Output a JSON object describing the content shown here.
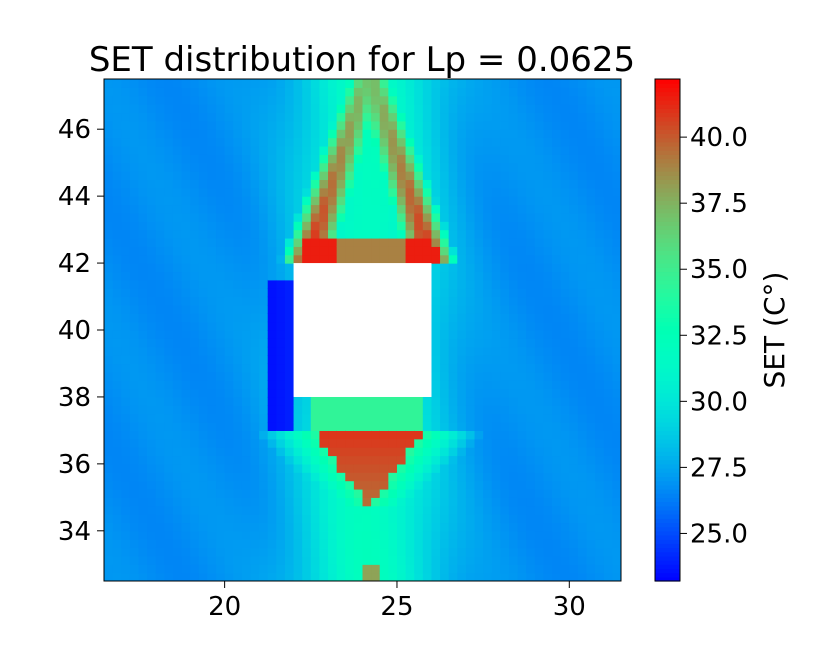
{
  "chart_data": {
    "type": "heatmap",
    "title": "SET distribution for Lp = 0.0625",
    "xlabel": "",
    "ylabel": "",
    "xlim": [
      16.5,
      31.5
    ],
    "ylim": [
      32.5,
      47.5
    ],
    "x_ticks": [
      20,
      25,
      30
    ],
    "x_tick_labels": [
      "20",
      "25",
      "30"
    ],
    "y_ticks": [
      34,
      36,
      38,
      40,
      42,
      44,
      46
    ],
    "y_tick_labels": [
      "34",
      "36",
      "38",
      "40",
      "42",
      "44",
      "46"
    ],
    "grid": false,
    "colormap": "rainbow",
    "value_range": [
      23.2,
      42.2
    ],
    "colorbar": {
      "label": "SET (C°)",
      "ticks": [
        25.0,
        27.5,
        30.0,
        32.5,
        35.0,
        37.5,
        40.0
      ],
      "tick_labels": [
        "25.0",
        "27.5",
        "30.0",
        "32.5",
        "35.0",
        "37.5",
        "40.0"
      ]
    },
    "obstacle": {
      "x": [
        22.0,
        26.0
      ],
      "y": [
        38.0,
        42.0
      ],
      "color": "#ffffff"
    },
    "field": {
      "background_SET": 26.8,
      "wake_plume": {
        "x_center": 24.2,
        "peak_SET": 32.0
      },
      "upper_arch": {
        "x": [
          22.5,
          26.0
        ],
        "y": [
          42.0,
          47.5
        ],
        "edge_SET": 41.5,
        "interior_SET": 30.5
      },
      "lower_cone": {
        "x": [
          22.8,
          25.8
        ],
        "y": [
          35.6,
          37.0
        ],
        "peak_SET": 41.0
      },
      "left_cold_strip": {
        "x": [
          21.2,
          22.0
        ],
        "y": [
          37.0,
          41.5
        ],
        "SET": 23.5
      }
    }
  }
}
